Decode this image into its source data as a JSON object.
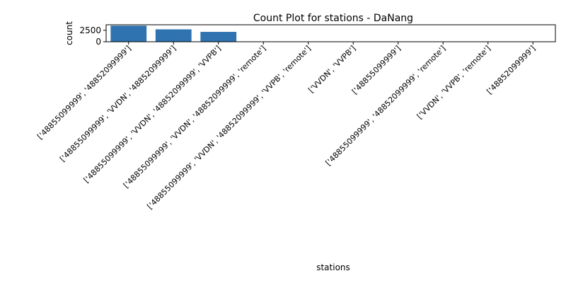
{
  "chart_data": {
    "type": "bar",
    "title": "Count Plot for stations - DaNang",
    "xlabel": "stations",
    "ylabel": "count",
    "categories": [
      "['48855099999', '48852099999']",
      "['48855099999', 'VVDN', '48852099999']",
      "['48855099999', 'VVDN', '48852099999', 'VVPB']",
      "['48855099999', 'VVDN', '48852099999', 'remote']",
      "['48855099999', 'VVDN', '48852099999', 'VVPB', 'remote']",
      "['VVDN', 'VVPB']",
      "['48855099999']",
      "['48855099999', '48852099999', 'remote']",
      "['VVDN', 'VVPB', 'remote']",
      "['48852099999']"
    ],
    "values": [
      3500,
      2700,
      2150,
      60,
      40,
      8,
      5,
      4,
      3,
      2
    ],
    "yticks": [
      "0",
      "2500"
    ],
    "ylim": [
      0,
      3700
    ],
    "bar_color": "#2f73b1",
    "grid": false
  }
}
